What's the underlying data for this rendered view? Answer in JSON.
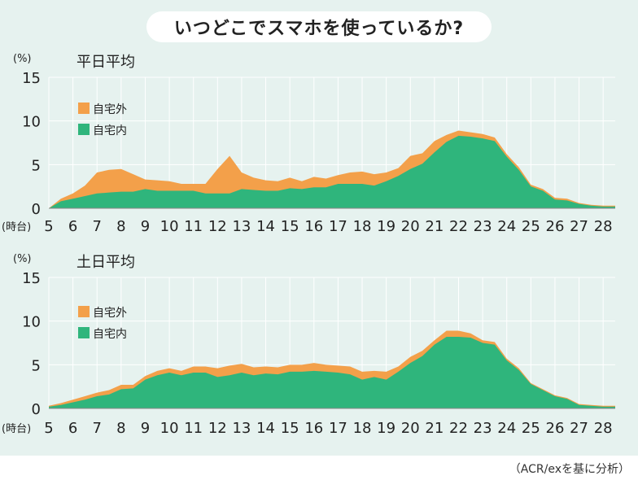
{
  "title": "いつどこでスマホを使っているか?",
  "source": "（ACR/exを基に分析）",
  "colors": {
    "outside": "#f3a04a",
    "home": "#2fb57c",
    "grid": "#ffffff",
    "panel": "#e6f2ef"
  },
  "chart_data": [
    {
      "type": "area",
      "title": "平日平均",
      "ylabel": "(%)",
      "xlabel": "(時台)",
      "ylim": [
        0,
        15
      ],
      "yticks": [
        0,
        5,
        10,
        15
      ],
      "xlim": [
        5,
        28.5
      ],
      "xticks": [
        5,
        6,
        7,
        8,
        9,
        10,
        11,
        12,
        13,
        14,
        15,
        16,
        17,
        18,
        19,
        20,
        21,
        22,
        23,
        24,
        25,
        26,
        27,
        28
      ],
      "legend": [
        "自宅外",
        "自宅内"
      ],
      "legend_position": "upper-left",
      "series": [
        {
          "name": "自宅内",
          "x": [
            5,
            5.5,
            6,
            6.5,
            7,
            7.5,
            8,
            8.5,
            9,
            9.5,
            10,
            10.5,
            11,
            11.5,
            12,
            12.5,
            13,
            13.5,
            14,
            14.5,
            15,
            15.5,
            16,
            16.5,
            17,
            17.5,
            18,
            18.5,
            19,
            19.5,
            20,
            20.5,
            21,
            21.5,
            22,
            22.5,
            23,
            23.5,
            24,
            24.5,
            25,
            25.5,
            26,
            26.5,
            27,
            27.5,
            28,
            28.5
          ],
          "values": [
            0,
            0.8,
            1.1,
            1.4,
            1.7,
            1.8,
            1.9,
            1.9,
            2.2,
            2.0,
            2.0,
            2.0,
            2.0,
            1.7,
            1.7,
            1.7,
            2.2,
            2.1,
            2.0,
            2.0,
            2.3,
            2.2,
            2.4,
            2.4,
            2.8,
            2.8,
            2.8,
            2.6,
            3.1,
            3.7,
            4.5,
            5.1,
            6.4,
            7.6,
            8.3,
            8.2,
            8.0,
            7.7,
            5.9,
            4.4,
            2.5,
            2.0,
            1.0,
            0.9,
            0.5,
            0.3,
            0.2,
            0.2
          ]
        },
        {
          "name": "自宅外",
          "x": [
            5,
            5.5,
            6,
            6.5,
            7,
            7.5,
            8,
            8.5,
            9,
            9.5,
            10,
            10.5,
            11,
            11.5,
            12,
            12.5,
            13,
            13.5,
            14,
            14.5,
            15,
            15.5,
            16,
            16.5,
            17,
            17.5,
            18,
            18.5,
            19,
            19.5,
            20,
            20.5,
            21,
            21.5,
            22,
            22.5,
            23,
            23.5,
            24,
            24.5,
            25,
            25.5,
            26,
            26.5,
            27,
            27.5,
            28,
            28.5
          ],
          "values": [
            0,
            0.3,
            0.6,
            1.2,
            2.4,
            2.6,
            2.6,
            2.0,
            1.1,
            1.2,
            1.1,
            0.8,
            0.8,
            1.1,
            2.8,
            4.3,
            1.9,
            1.4,
            1.2,
            1.1,
            1.2,
            0.9,
            1.2,
            1.0,
            1.0,
            1.3,
            1.4,
            1.3,
            1.0,
            0.9,
            1.5,
            1.2,
            1.3,
            0.8,
            0.6,
            0.5,
            0.5,
            0.4,
            0.3,
            0.3,
            0.2,
            0.2,
            0.2,
            0.2,
            0.1,
            0.1,
            0.1,
            0.1
          ]
        }
      ]
    },
    {
      "type": "area",
      "title": "土日平均",
      "ylabel": "(%)",
      "xlabel": "(時台)",
      "ylim": [
        0,
        15
      ],
      "yticks": [
        0,
        5,
        10,
        15
      ],
      "xlim": [
        5,
        28.5
      ],
      "xticks": [
        5,
        6,
        7,
        8,
        9,
        10,
        11,
        12,
        13,
        14,
        15,
        16,
        17,
        18,
        19,
        20,
        21,
        22,
        23,
        24,
        25,
        26,
        27,
        28
      ],
      "legend": [
        "自宅外",
        "自宅内"
      ],
      "legend_position": "upper-left",
      "series": [
        {
          "name": "自宅内",
          "x": [
            5,
            5.5,
            6,
            6.5,
            7,
            7.5,
            8,
            8.5,
            9,
            9.5,
            10,
            10.5,
            11,
            11.5,
            12,
            12.5,
            13,
            13.5,
            14,
            14.5,
            15,
            15.5,
            16,
            16.5,
            17,
            17.5,
            18,
            18.5,
            19,
            19.5,
            20,
            20.5,
            21,
            21.5,
            22,
            22.5,
            23,
            23.5,
            24,
            24.5,
            25,
            25.5,
            26,
            26.5,
            27,
            27.5,
            28,
            28.5
          ],
          "values": [
            0.2,
            0.4,
            0.7,
            1.0,
            1.4,
            1.6,
            2.2,
            2.3,
            3.3,
            3.8,
            4.1,
            3.8,
            4.1,
            4.1,
            3.6,
            3.8,
            4.1,
            3.8,
            4.0,
            3.9,
            4.2,
            4.2,
            4.3,
            4.2,
            4.1,
            3.9,
            3.3,
            3.6,
            3.3,
            4.2,
            5.2,
            6.0,
            7.3,
            8.2,
            8.2,
            8.1,
            7.5,
            7.3,
            5.5,
            4.4,
            2.8,
            2.1,
            1.4,
            1.1,
            0.4,
            0.3,
            0.2,
            0.2
          ]
        },
        {
          "name": "自宅外",
          "x": [
            5,
            5.5,
            6,
            6.5,
            7,
            7.5,
            8,
            8.5,
            9,
            9.5,
            10,
            10.5,
            11,
            11.5,
            12,
            12.5,
            13,
            13.5,
            14,
            14.5,
            15,
            15.5,
            16,
            16.5,
            17,
            17.5,
            18,
            18.5,
            19,
            19.5,
            20,
            20.5,
            21,
            21.5,
            22,
            22.5,
            23,
            23.5,
            24,
            24.5,
            25,
            25.5,
            26,
            26.5,
            27,
            27.5,
            28,
            28.5
          ],
          "values": [
            0.1,
            0.2,
            0.3,
            0.4,
            0.4,
            0.5,
            0.5,
            0.4,
            0.4,
            0.5,
            0.5,
            0.5,
            0.7,
            0.7,
            1.0,
            1.1,
            1.0,
            0.9,
            0.8,
            0.8,
            0.8,
            0.8,
            0.9,
            0.8,
            0.8,
            0.9,
            0.9,
            0.7,
            0.9,
            0.6,
            0.7,
            0.6,
            0.5,
            0.7,
            0.7,
            0.5,
            0.3,
            0.3,
            0.2,
            0.2,
            0.1,
            0.1,
            0.1,
            0.1,
            0.1,
            0.1,
            0.1,
            0.1
          ]
        }
      ]
    }
  ]
}
